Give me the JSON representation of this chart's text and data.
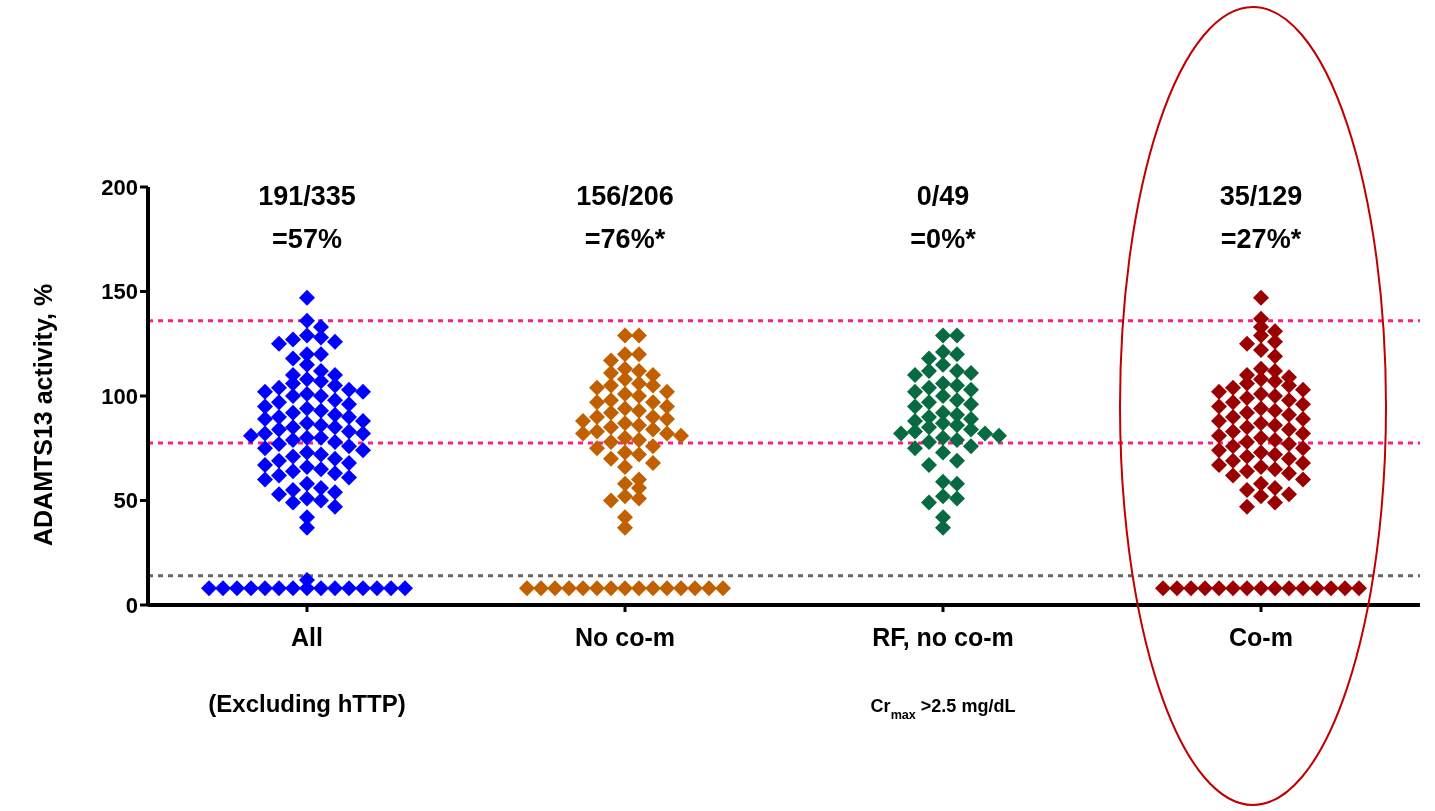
{
  "chart_data": {
    "type": "scatter",
    "ylabel": "ADAMTS13 activity, %",
    "categories": [
      "All",
      "No co-m",
      "RF, no co-m",
      "Co-m"
    ],
    "ylim": [
      0,
      200
    ],
    "yticks": [
      0,
      50,
      100,
      150,
      200
    ],
    "marker": "diamond",
    "series": [
      {
        "color": "#0000ff",
        "x": [
          "All",
          "All",
          "All",
          "All",
          "All",
          "All",
          "All",
          "All",
          "All",
          "All",
          "All",
          "All",
          "All",
          "All",
          "All",
          "All",
          "All",
          "All",
          "All",
          "All",
          "All",
          "All",
          "All",
          "All",
          "All",
          "All",
          "All",
          "All",
          "All",
          "All",
          "All",
          "All",
          "All",
          "All",
          "All",
          "All",
          "All",
          "All",
          "All",
          "All",
          "All",
          "All",
          "All",
          "All",
          "All",
          "All",
          "All",
          "All",
          "All",
          "All",
          "All",
          "All",
          "All",
          "All",
          "All",
          "All",
          "All",
          "All",
          "All",
          "All",
          "All",
          "All",
          "All",
          "All",
          "All",
          "All",
          "All",
          "All",
          "All",
          "All",
          "All",
          "All",
          "All",
          "All",
          "All",
          "All",
          "All",
          "All",
          "All",
          "All",
          "All",
          "All",
          "All",
          "All",
          "All",
          "All",
          "All",
          "All",
          "All",
          "All",
          "All",
          "All",
          "All",
          "All",
          "All",
          "All"
        ],
        "values": [
          147,
          136,
          133,
          129,
          128,
          127,
          126,
          125,
          120,
          120,
          118,
          115,
          112,
          110,
          110,
          108,
          107,
          106,
          105,
          104,
          103,
          102,
          102,
          101,
          100,
          100,
          98,
          97,
          96,
          95,
          94,
          93,
          92,
          91,
          90,
          90,
          89,
          88,
          87,
          86,
          85,
          85,
          84,
          83,
          82,
          82,
          81,
          80,
          80,
          79,
          78,
          77,
          76,
          75,
          74,
          73,
          72,
          71,
          70,
          69,
          68,
          67,
          66,
          65,
          64,
          63,
          62,
          61,
          60,
          58,
          56,
          55,
          54,
          53,
          51,
          50,
          49,
          47,
          42,
          37,
          12,
          8,
          8,
          8,
          8,
          8,
          8,
          8,
          8,
          8,
          8,
          8,
          8,
          8,
          8,
          8
        ]
      },
      {
        "color": "#c06000",
        "x": [
          "No co-m",
          "No co-m",
          "No co-m",
          "No co-m",
          "No co-m",
          "No co-m",
          "No co-m",
          "No co-m",
          "No co-m",
          "No co-m",
          "No co-m",
          "No co-m",
          "No co-m",
          "No co-m",
          "No co-m",
          "No co-m",
          "No co-m",
          "No co-m",
          "No co-m",
          "No co-m",
          "No co-m",
          "No co-m",
          "No co-m",
          "No co-m",
          "No co-m",
          "No co-m",
          "No co-m",
          "No co-m",
          "No co-m",
          "No co-m",
          "No co-m",
          "No co-m",
          "No co-m",
          "No co-m",
          "No co-m",
          "No co-m",
          "No co-m",
          "No co-m",
          "No co-m",
          "No co-m",
          "No co-m",
          "No co-m",
          "No co-m",
          "No co-m",
          "No co-m",
          "No co-m",
          "No co-m",
          "No co-m",
          "No co-m",
          "No co-m",
          "No co-m",
          "No co-m",
          "No co-m",
          "No co-m",
          "No co-m",
          "No co-m",
          "No co-m",
          "No co-m",
          "No co-m",
          "No co-m",
          "No co-m",
          "No co-m",
          "No co-m",
          "No co-m",
          "No co-m",
          "No co-m",
          "No co-m",
          "No co-m",
          "No co-m"
        ],
        "values": [
          129,
          129,
          120,
          120,
          117,
          113,
          112,
          111,
          110,
          108,
          106,
          105,
          105,
          104,
          102,
          101,
          100,
          98,
          97,
          97,
          95,
          94,
          93,
          92,
          90,
          90,
          89,
          88,
          87,
          86,
          85,
          84,
          83,
          82,
          82,
          81,
          80,
          79,
          78,
          76,
          75,
          73,
          72,
          70,
          68,
          66,
          60,
          58,
          56,
          52,
          51,
          50,
          42,
          37,
          8,
          8,
          8,
          8,
          8,
          8,
          8,
          8,
          8,
          8,
          8,
          8,
          8,
          8,
          8
        ]
      },
      {
        "color": "#086a40",
        "x": [
          "RF, no co-m",
          "RF, no co-m",
          "RF, no co-m",
          "RF, no co-m",
          "RF, no co-m",
          "RF, no co-m",
          "RF, no co-m",
          "RF, no co-m",
          "RF, no co-m",
          "RF, no co-m",
          "RF, no co-m",
          "RF, no co-m",
          "RF, no co-m",
          "RF, no co-m",
          "RF, no co-m",
          "RF, no co-m",
          "RF, no co-m",
          "RF, no co-m",
          "RF, no co-m",
          "RF, no co-m",
          "RF, no co-m",
          "RF, no co-m",
          "RF, no co-m",
          "RF, no co-m",
          "RF, no co-m",
          "RF, no co-m",
          "RF, no co-m",
          "RF, no co-m",
          "RF, no co-m",
          "RF, no co-m",
          "RF, no co-m",
          "RF, no co-m",
          "RF, no co-m",
          "RF, no co-m",
          "RF, no co-m",
          "RF, no co-m",
          "RF, no co-m",
          "RF, no co-m",
          "RF, no co-m",
          "RF, no co-m",
          "RF, no co-m",
          "RF, no co-m",
          "RF, no co-m",
          "RF, no co-m",
          "RF, no co-m",
          "RF, no co-m",
          "RF, no co-m",
          "RF, no co-m"
        ],
        "values": [
          129,
          129,
          121,
          120,
          118,
          115,
          112,
          112,
          111,
          110,
          106,
          105,
          104,
          103,
          102,
          100,
          98,
          97,
          96,
          95,
          92,
          91,
          90,
          89,
          88,
          87,
          86,
          85,
          84,
          83,
          82,
          82,
          81,
          80,
          79,
          78,
          76,
          75,
          73,
          69,
          67,
          59,
          58,
          52,
          51,
          49,
          42,
          37
        ]
      },
      {
        "color": "#9b0000",
        "x": [
          "Co-m",
          "Co-m",
          "Co-m",
          "Co-m",
          "Co-m",
          "Co-m",
          "Co-m",
          "Co-m",
          "Co-m",
          "Co-m",
          "Co-m",
          "Co-m",
          "Co-m",
          "Co-m",
          "Co-m",
          "Co-m",
          "Co-m",
          "Co-m",
          "Co-m",
          "Co-m",
          "Co-m",
          "Co-m",
          "Co-m",
          "Co-m",
          "Co-m",
          "Co-m",
          "Co-m",
          "Co-m",
          "Co-m",
          "Co-m",
          "Co-m",
          "Co-m",
          "Co-m",
          "Co-m",
          "Co-m",
          "Co-m",
          "Co-m",
          "Co-m",
          "Co-m",
          "Co-m",
          "Co-m",
          "Co-m",
          "Co-m",
          "Co-m",
          "Co-m",
          "Co-m",
          "Co-m",
          "Co-m",
          "Co-m",
          "Co-m",
          "Co-m",
          "Co-m",
          "Co-m",
          "Co-m",
          "Co-m",
          "Co-m",
          "Co-m",
          "Co-m",
          "Co-m",
          "Co-m",
          "Co-m",
          "Co-m",
          "Co-m",
          "Co-m",
          "Co-m",
          "Co-m",
          "Co-m",
          "Co-m",
          "Co-m",
          "Co-m",
          "Co-m",
          "Co-m",
          "Co-m",
          "Co-m",
          "Co-m",
          "Co-m",
          "Co-m",
          "Co-m",
          "Co-m",
          "Co-m",
          "Co-m",
          "Co-m",
          "Co-m"
        ],
        "values": [
          147,
          137,
          133,
          131,
          129,
          126,
          125,
          122,
          119,
          113,
          112,
          110,
          109,
          108,
          107,
          106,
          105,
          104,
          103,
          102,
          101,
          100,
          99,
          98,
          97,
          96,
          95,
          94,
          93,
          92,
          91,
          90,
          89,
          88,
          87,
          86,
          85,
          84,
          83,
          82,
          81,
          80,
          79,
          78,
          77,
          76,
          75,
          74,
          73,
          72,
          71,
          70,
          69,
          68,
          67,
          66,
          65,
          64,
          63,
          62,
          60,
          58,
          56,
          55,
          53,
          52,
          49,
          47,
          8,
          8,
          8,
          8,
          8,
          8,
          8,
          8,
          8,
          8,
          8,
          8,
          8,
          8,
          8
        ]
      }
    ],
    "ref_lines": [
      {
        "axis": "y",
        "value": 136,
        "color": "#ff1f7f",
        "line_style": "dotted"
      },
      {
        "axis": "y",
        "value": 77.5,
        "color": "#ff1f7f",
        "line_style": "dotted"
      },
      {
        "axis": "y",
        "value": 14,
        "color": "#666666",
        "line_style": "dotted"
      }
    ],
    "annotations": [
      "191/335",
      "=57%",
      "156/206",
      "=76%*",
      "0/49",
      "=0%*",
      "35/129",
      "=27%*",
      "(Excluding hTTP)",
      "Cr$_{max}$ >2.5 mg/dL"
    ]
  }
}
